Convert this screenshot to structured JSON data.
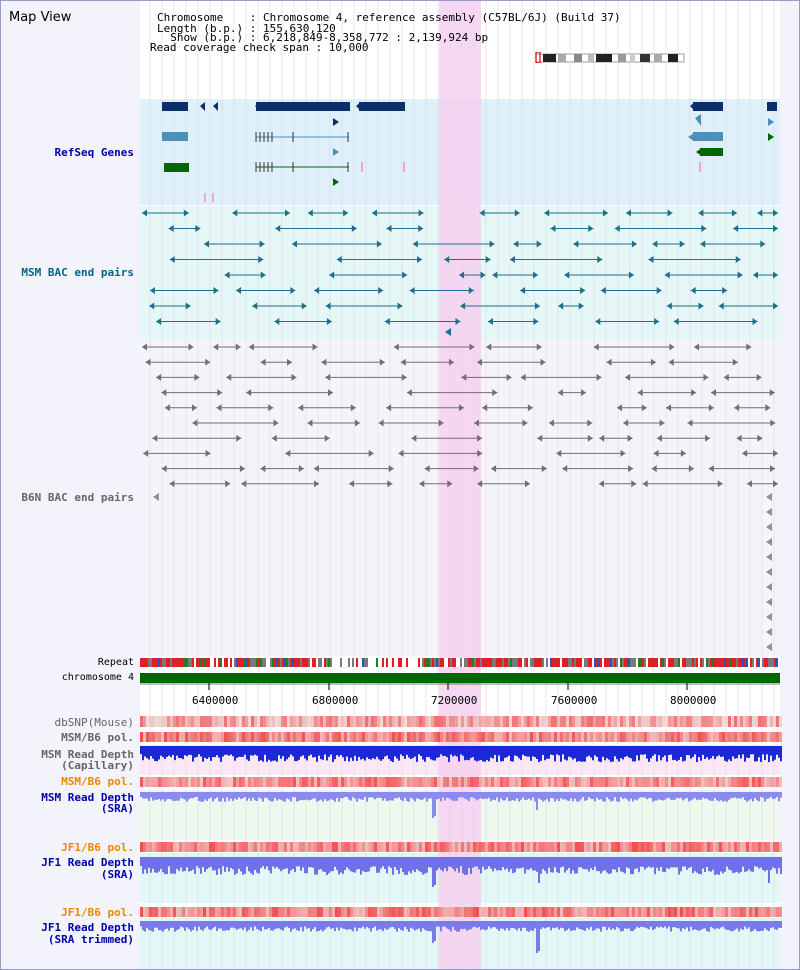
{
  "title": "Map View",
  "header": {
    "line1": "Chromosome    : Chromosome 4, reference assembly (C57BL/6J) (Build 37)",
    "line2": "Length (b.p.) : 155,630,120",
    "line3": "  Show (b.p.) : 6,218,849-8,358,772 : 2,139,924 bp",
    "line4": "Read coverage check span : 10,000"
  },
  "tracks": {
    "refseq": "RefSeq Genes",
    "msm_bac": "MSM BAC end pairs",
    "b6n_bac": "B6N BAC end pairs",
    "repeat": "Repeat",
    "chromosome": "chromosome 4"
  },
  "axis_ticks": [
    "6400000",
    "6800000",
    "7200000",
    "7600000",
    "8000000"
  ],
  "lower_tracks": {
    "dbsnp": "dbSNP(Mouse)",
    "msm_b6_pol": "MSM/B6 pol.",
    "msm_depth_cap_1": "MSM Read Depth",
    "msm_depth_cap_2": "(Capillary)",
    "msm_b6_pol2": "MSM/B6 pol.",
    "msm_depth_sra_1": "MSM Read Depth",
    "msm_depth_sra_2": "(SRA)",
    "jf1_b6_pol": "JF1/B6 pol.",
    "jf1_depth_sra_1": "JF1 Read Depth",
    "jf1_depth_sra_2": "(SRA)",
    "jf1_b6_pol2": "JF1/B6 pol.",
    "jf1_depth_trim_1": "JF1 Read Depth",
    "jf1_depth_trim_2": "(SRA trimmed)"
  },
  "colors": {
    "label_blue": "#0000aa",
    "label_teal": "#006688",
    "label_gray": "#666666",
    "label_orange": "#ee8800",
    "highlight": "#f7d0f0",
    "gene_dark": "#0b2f6b",
    "gene_mid": "#4a90b8",
    "gene_green": "#006600"
  }
}
